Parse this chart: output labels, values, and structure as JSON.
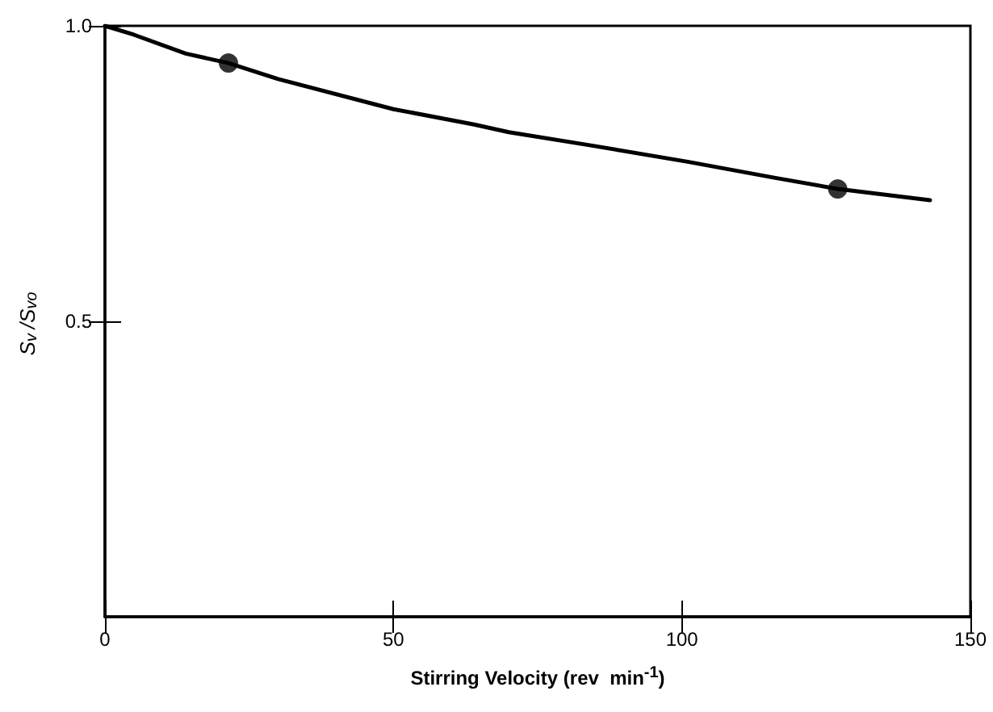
{
  "chart_data": {
    "type": "line",
    "xlabel": "Stirring Velocity (rev  min$^{-1}$)",
    "ylabel": "S$_{v}$/S$_{vo}$",
    "xlim": [
      0,
      150
    ],
    "xticks": [
      0,
      50,
      100,
      150
    ],
    "ylim": [
      0,
      1
    ],
    "yticks": [
      0.5,
      {
        "value": 1,
        "label": "1.0"
      }
    ],
    "line_style": "solid",
    "series": [
      {
        "color": "#000000",
        "marker": "none",
        "x": [
          0,
          5,
          14,
          21.4,
          30,
          50,
          64,
          70,
          84,
          101,
          116,
          127,
          143
        ],
        "values": [
          1.0,
          0.985,
          0.953,
          0.937,
          0.91,
          0.859,
          0.833,
          0.82,
          0.798,
          0.77,
          0.743,
          0.724,
          0.705
        ]
      },
      {
        "type": "scatter",
        "color": "#000000",
        "marker": "circle",
        "x": [
          21.4,
          127
        ],
        "values": [
          0.937,
          0.724
        ]
      }
    ]
  }
}
